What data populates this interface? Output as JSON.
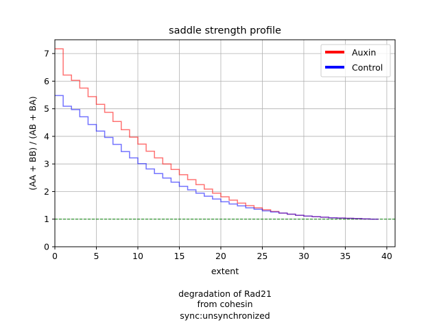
{
  "chart_data": {
    "type": "line",
    "title": "saddle strength profile",
    "xlabel": "extent",
    "ylabel": "(AA + BB) / (AB + BA)",
    "xlim": [
      0,
      41
    ],
    "ylim": [
      0,
      7.5
    ],
    "xticks": [
      0,
      5,
      10,
      15,
      20,
      25,
      30,
      35,
      40
    ],
    "yticks": [
      0,
      1,
      2,
      3,
      4,
      5,
      6,
      7
    ],
    "grid": true,
    "legend_position": "top-right",
    "step": "post",
    "reference_line": {
      "y": 1.0,
      "color": "#008000",
      "style": "dashed"
    },
    "series": [
      {
        "name": "Auxin",
        "color": "#ff0000",
        "x": [
          0,
          1,
          2,
          3,
          4,
          5,
          6,
          7,
          8,
          9,
          10,
          11,
          12,
          13,
          14,
          15,
          16,
          17,
          18,
          19,
          20,
          21,
          22,
          23,
          24,
          25,
          26,
          27,
          28,
          29,
          30,
          31,
          32,
          33,
          34,
          35,
          36,
          37,
          38,
          39
        ],
        "values": [
          7.17,
          6.22,
          6.03,
          5.75,
          5.44,
          5.16,
          4.87,
          4.54,
          4.24,
          3.97,
          3.72,
          3.46,
          3.22,
          3.0,
          2.8,
          2.61,
          2.43,
          2.25,
          2.09,
          1.94,
          1.81,
          1.69,
          1.58,
          1.49,
          1.41,
          1.34,
          1.28,
          1.22,
          1.18,
          1.14,
          1.11,
          1.09,
          1.07,
          1.05,
          1.04,
          1.03,
          1.02,
          1.01,
          1.0,
          1.0
        ]
      },
      {
        "name": "Control",
        "color": "#0000ff",
        "x": [
          0,
          1,
          2,
          3,
          4,
          5,
          6,
          7,
          8,
          9,
          10,
          11,
          12,
          13,
          14,
          15,
          16,
          17,
          18,
          19,
          20,
          21,
          22,
          23,
          24,
          25,
          26,
          27,
          28,
          29,
          30,
          31,
          32,
          33,
          34,
          35,
          36,
          37,
          38,
          39
        ],
        "values": [
          5.48,
          5.09,
          4.97,
          4.71,
          4.43,
          4.19,
          3.96,
          3.71,
          3.45,
          3.22,
          3.01,
          2.82,
          2.65,
          2.49,
          2.34,
          2.19,
          2.06,
          1.94,
          1.83,
          1.73,
          1.63,
          1.55,
          1.48,
          1.41,
          1.36,
          1.3,
          1.26,
          1.22,
          1.18,
          1.14,
          1.11,
          1.09,
          1.07,
          1.05,
          1.04,
          1.03,
          1.02,
          1.01,
          1.0,
          1.0
        ]
      }
    ]
  },
  "caption": {
    "lines": [
      "degradation of Rad21",
      "from cohesin",
      "sync:unsynchronized"
    ]
  }
}
